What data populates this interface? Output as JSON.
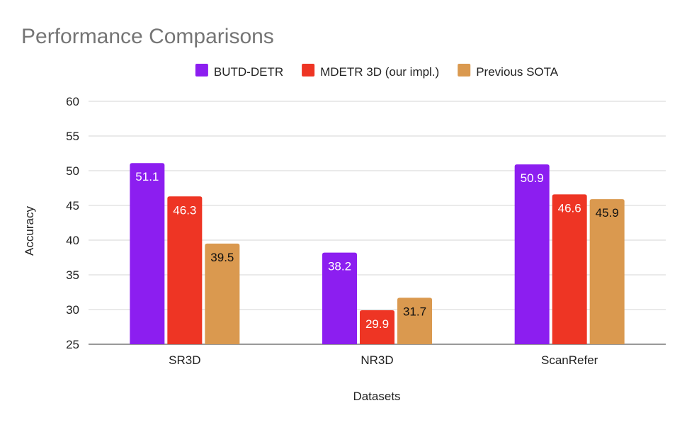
{
  "chart_data": {
    "type": "bar",
    "title": "Performance Comparisons",
    "xlabel": "Datasets",
    "ylabel": "Accuracy",
    "categories": [
      "SR3D",
      "NR3D",
      "ScanRefer"
    ],
    "series": [
      {
        "name": "BUTD-DETR",
        "color": "#8c1ef0",
        "label_color": "#ffffff",
        "values": [
          51.1,
          38.2,
          50.9
        ]
      },
      {
        "name": "MDETR 3D (our impl.)",
        "color": "#ee3524",
        "label_color": "#ffffff",
        "values": [
          46.3,
          29.9,
          46.6
        ]
      },
      {
        "name": "Previous SOTA",
        "color": "#da994f",
        "label_color": "#111111",
        "values": [
          39.5,
          31.7,
          45.9
        ]
      }
    ],
    "ylim": [
      25,
      60
    ],
    "yticks": [
      25,
      30,
      35,
      40,
      45,
      50,
      55,
      60
    ],
    "grid": true,
    "legend_position": "top-center"
  }
}
